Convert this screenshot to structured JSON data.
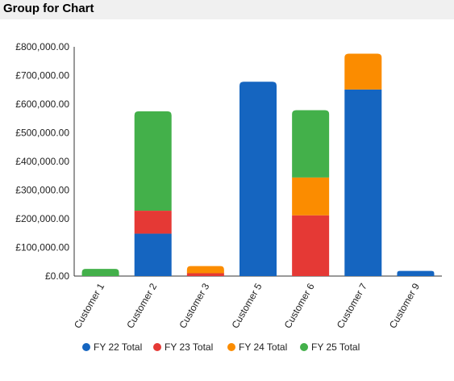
{
  "header": {
    "title": "Group for Chart"
  },
  "chart_data": {
    "type": "bar",
    "stacked": true,
    "categories": [
      "Customer 1",
      "Customer 2",
      "Customer 3",
      "Customer 5",
      "Customer 6",
      "Customer 7",
      "Customer 9"
    ],
    "series": [
      {
        "name": "FY 22 Total",
        "color": "#1565c0",
        "values": [
          0,
          148000,
          0,
          678000,
          0,
          651000,
          18000
        ]
      },
      {
        "name": "FY 23 Total",
        "color": "#e53935",
        "values": [
          0,
          80000,
          10000,
          0,
          212000,
          0,
          0
        ]
      },
      {
        "name": "FY 24 Total",
        "color": "#fb8c00",
        "values": [
          0,
          0,
          25000,
          0,
          132000,
          125000,
          0
        ]
      },
      {
        "name": "FY 25 Total",
        "color": "#43b04a",
        "values": [
          25000,
          347000,
          0,
          0,
          235000,
          0,
          0
        ]
      }
    ],
    "yticks": [
      "£0.00",
      "£100,000.00",
      "£200,000.00",
      "£300,000.00",
      "£400,000.00",
      "£500,000.00",
      "£600,000.00",
      "£700,000.00",
      "£800,000.00"
    ],
    "ylim": [
      0,
      800000
    ],
    "legend_position": "bottom",
    "grid": false
  }
}
